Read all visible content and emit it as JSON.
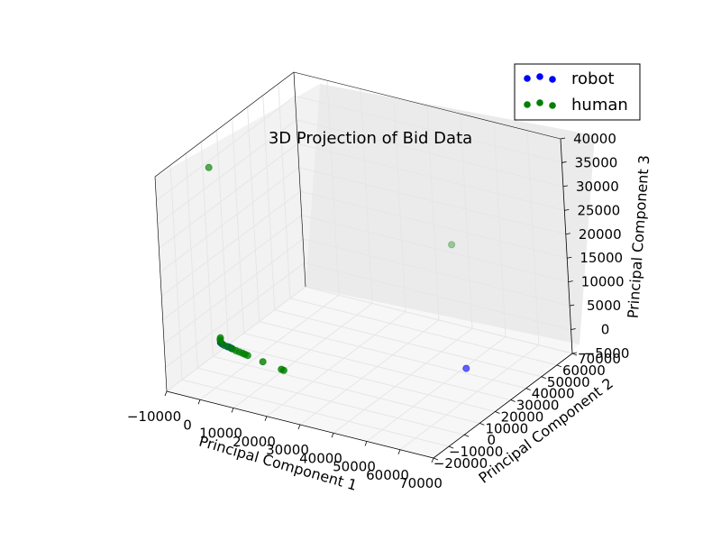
{
  "chart_data": {
    "type": "scatter",
    "title": "3D Projection of Bid Data",
    "xlabel": "Principal Component 1",
    "ylabel": "Principal Component 2",
    "zlabel": "Principal Component 3",
    "xticks": [
      "−10000",
      "0",
      "10000",
      "20000",
      "30000",
      "40000",
      "50000",
      "60000",
      "70000"
    ],
    "yticks": [
      "−20000",
      "−10000",
      "0",
      "10000",
      "20000",
      "30000",
      "40000",
      "50000",
      "60000",
      "70000"
    ],
    "zticks": [
      "−5000",
      "0",
      "5000",
      "10000",
      "15000",
      "20000",
      "25000",
      "30000",
      "35000",
      "40000"
    ],
    "xlim": [
      -10000,
      70000
    ],
    "ylim": [
      -20000,
      70000
    ],
    "zlim": [
      -5000,
      40000
    ],
    "grid": true,
    "legend_position": "top-right",
    "series": [
      {
        "name": "robot",
        "color": "#0000ff",
        "points": [
          {
            "x": 58000,
            "y": 28000,
            "z": 0
          },
          {
            "x": -5000,
            "y": 5000,
            "z": 0
          },
          {
            "x": -4800,
            "y": 4600,
            "z": 200
          },
          {
            "x": -4500,
            "y": 4900,
            "z": -200
          },
          {
            "x": -3000,
            "y": 5000,
            "z": -500
          },
          {
            "x": -2000,
            "y": 5200,
            "z": -700
          }
        ]
      },
      {
        "name": "human",
        "color": "#008000",
        "points": [
          {
            "x": -14000,
            "y": 22000,
            "z": 31000
          },
          {
            "x": 40000,
            "y": 60000,
            "z": 15000
          },
          {
            "x": -5000,
            "y": 5000,
            "z": 1000
          },
          {
            "x": -5200,
            "y": 5200,
            "z": 500
          },
          {
            "x": -4700,
            "y": 4800,
            "z": 0
          },
          {
            "x": -3800,
            "y": 4700,
            "z": -300
          },
          {
            "x": -2500,
            "y": 5000,
            "z": -500
          },
          {
            "x": -1500,
            "y": 5000,
            "z": -700
          },
          {
            "x": -500,
            "y": 5000,
            "z": -900
          },
          {
            "x": 500,
            "y": 5000,
            "z": -1000
          },
          {
            "x": 1500,
            "y": 5000,
            "z": -1100
          },
          {
            "x": 2200,
            "y": 5000,
            "z": -1200
          },
          {
            "x": 3000,
            "y": 5000,
            "z": -1300
          },
          {
            "x": 8000,
            "y": 4000,
            "z": -1500
          },
          {
            "x": 14000,
            "y": 3000,
            "z": -1800
          },
          {
            "x": 14700,
            "y": 3000,
            "z": -1900
          }
        ]
      }
    ]
  }
}
